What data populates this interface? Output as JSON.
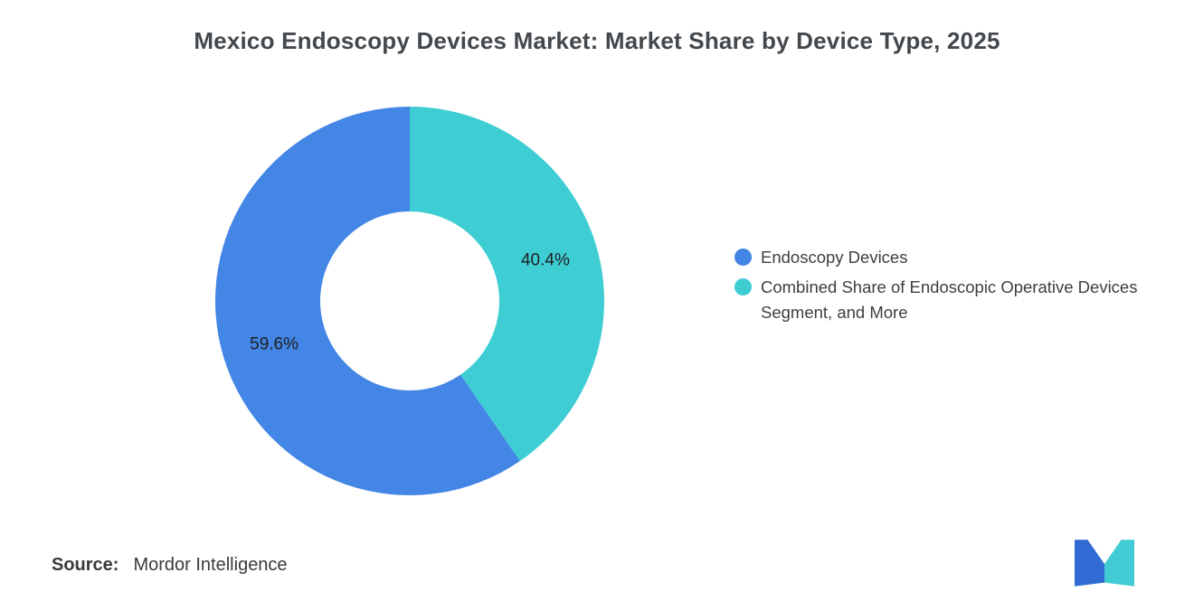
{
  "chart_data": {
    "type": "pie",
    "donut": true,
    "inner_radius_ratio": 0.46,
    "start_angle": "top",
    "first_slice_direction": "counterclockwise",
    "title": "Mexico Endoscopy Devices Market: Market Share by Device Type, 2025",
    "legend_position": "right",
    "grid": false,
    "data_label_color": "#1E1E1E",
    "slices": [
      {
        "label": "Endoscopy Devices",
        "value": 59.6,
        "data_label": "59.6%",
        "color": "#4386E5"
      },
      {
        "label": "Combined Share of Endoscopic Operative Devices Segment, and More",
        "value": 40.4,
        "data_label": "40.4%",
        "color": "#3FCDD4"
      }
    ]
  },
  "source": {
    "label": "Source:",
    "value": "Mordor Intelligence"
  },
  "logo": {
    "name": "mordor-intelligence-logo",
    "colors": {
      "left": "#2F6BD3",
      "right": "#41CBD2"
    }
  },
  "colors": {
    "background": "#FFFFFF",
    "title": "#43484D",
    "legend_text": "#3C4043"
  }
}
